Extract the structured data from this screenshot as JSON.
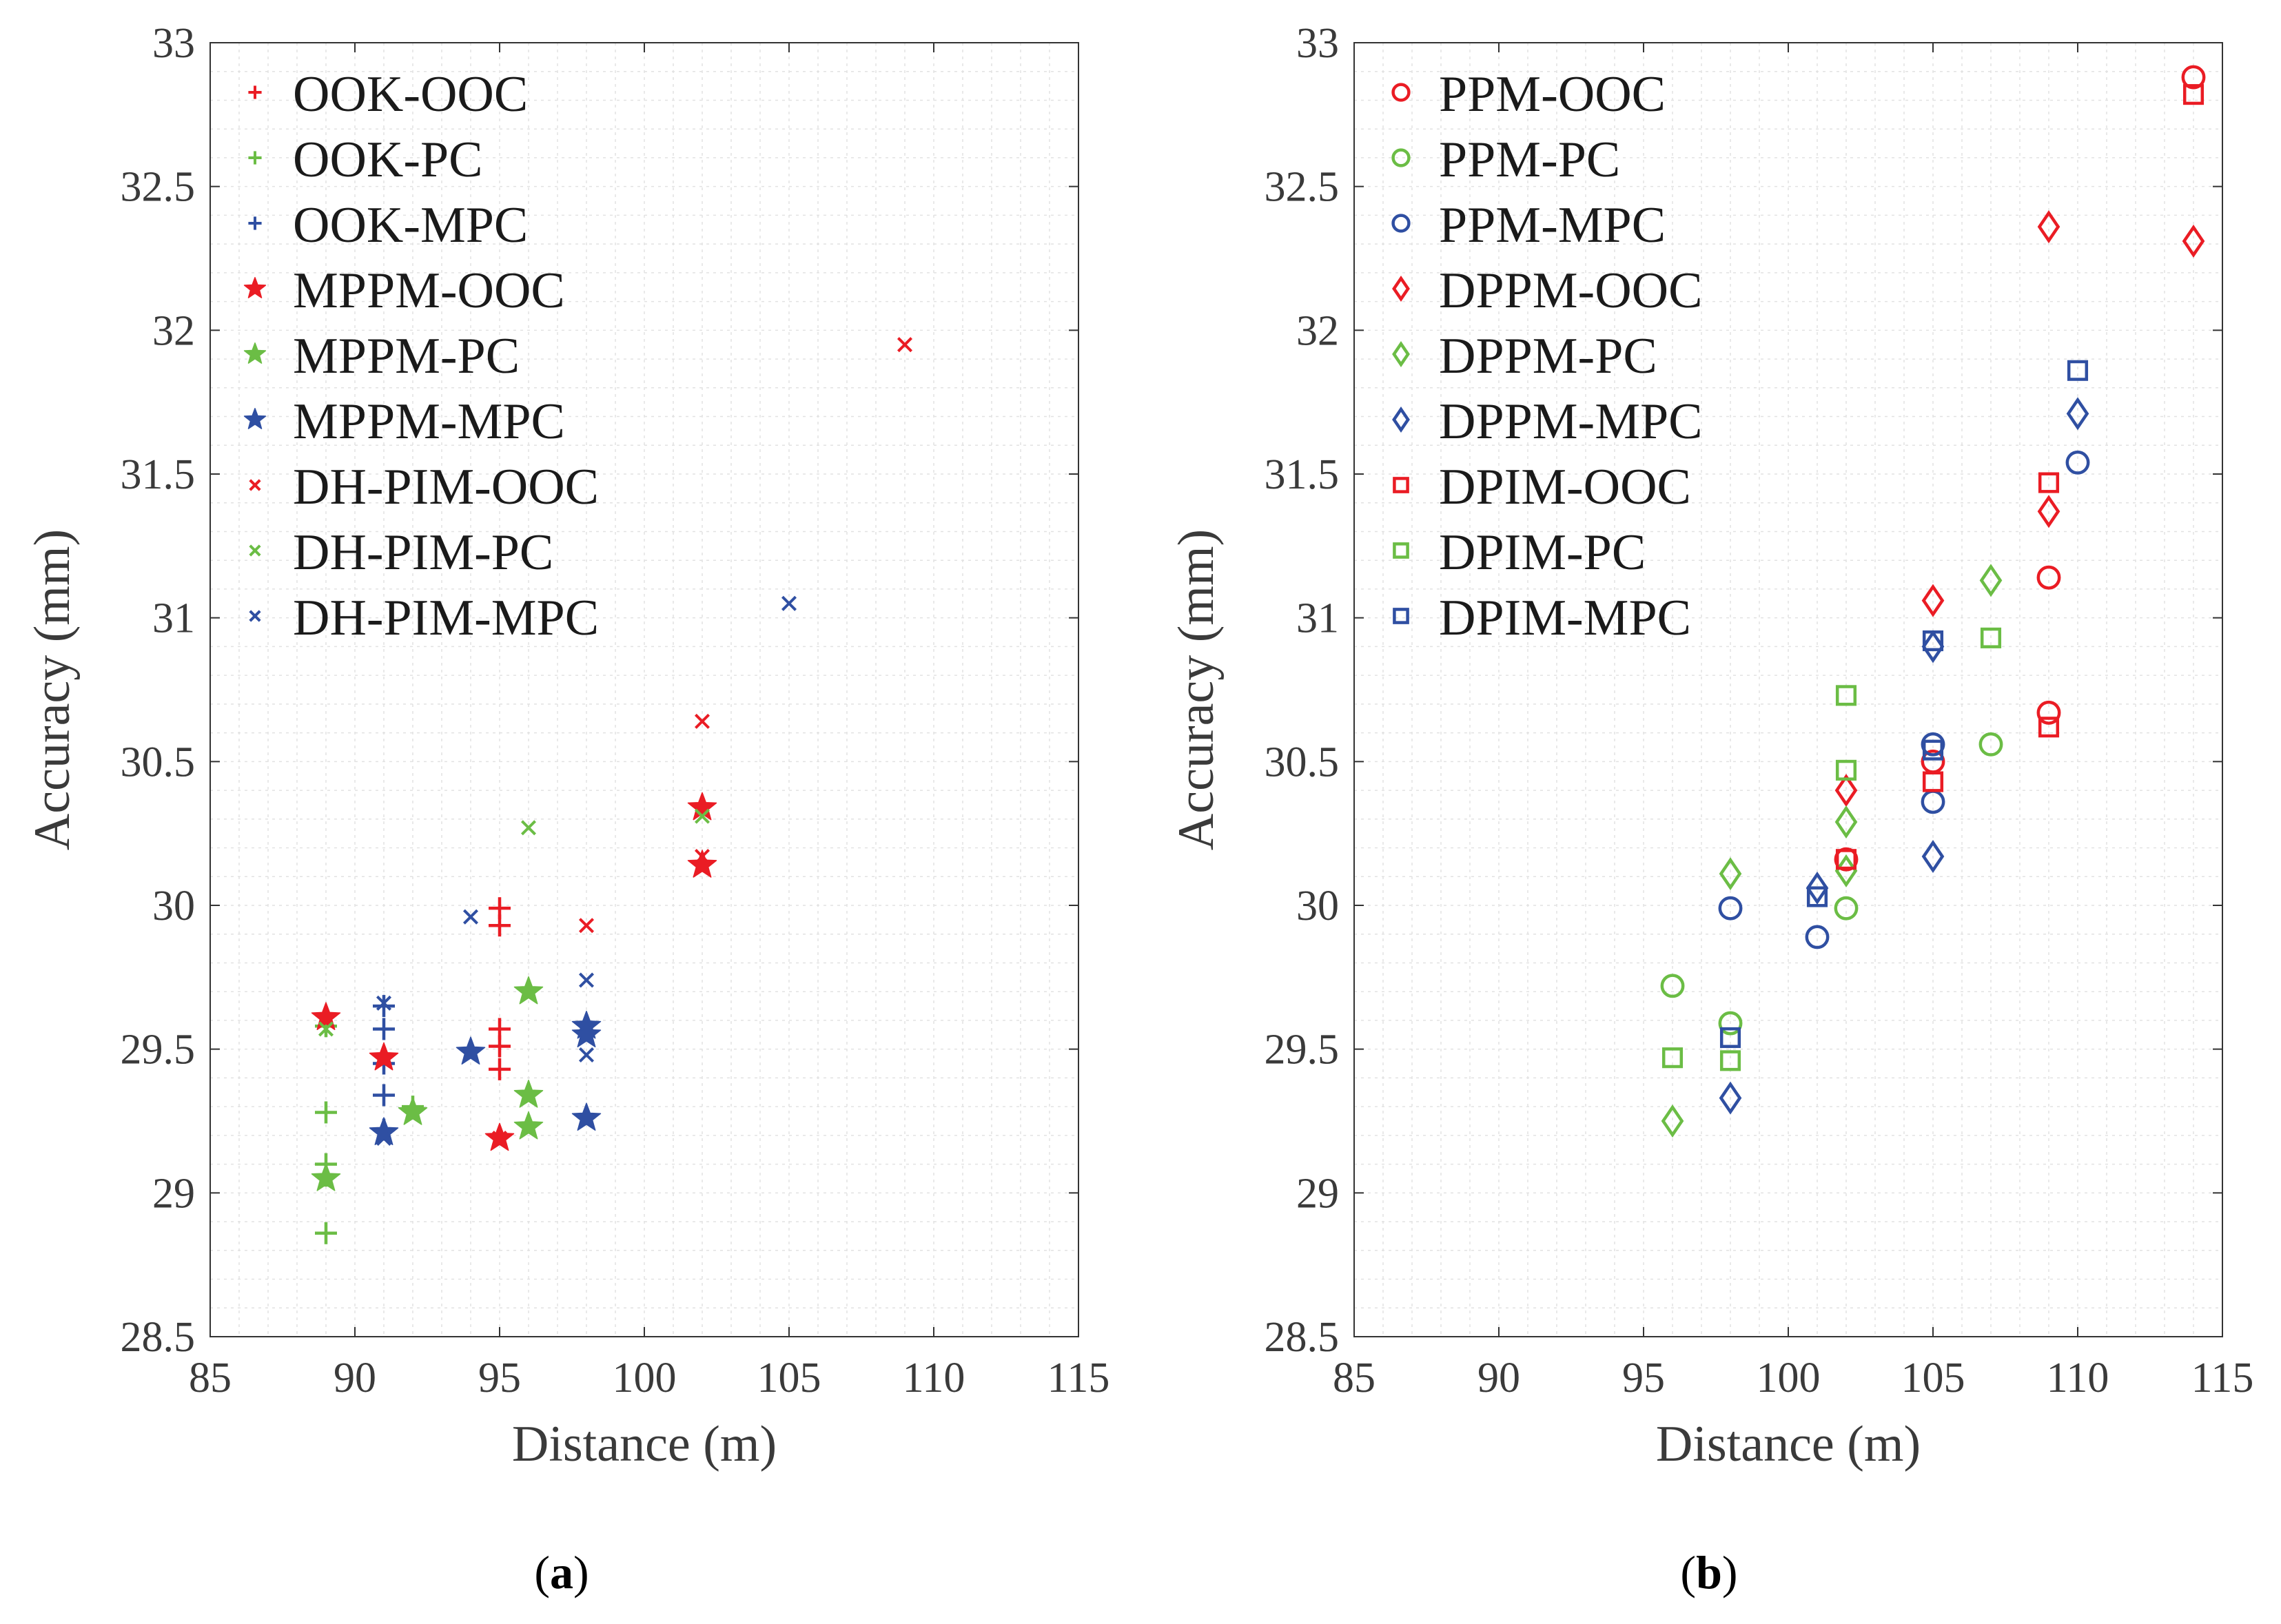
{
  "colors": {
    "red": "#ea1c24",
    "green": "#6bbd45",
    "blue": "#2f4fa2"
  },
  "chart_data": [
    {
      "type": "scatter",
      "caption": "a",
      "title": "",
      "xlabel": "Distance (m)",
      "ylabel": "Accuracy (mm)",
      "xlim": [
        85,
        115
      ],
      "ylim": [
        28.5,
        33
      ],
      "xticks": [
        "85",
        "90",
        "95",
        "100",
        "105",
        "110",
        "115"
      ],
      "yticks": [
        "28.5",
        "29",
        "29.5",
        "30",
        "30.5",
        "31",
        "31.5",
        "32",
        "32.5",
        "33"
      ],
      "legend": "top-left",
      "series": [
        {
          "name": "OOK-OOC",
          "marker": "plus-small",
          "color": "red",
          "points": [
            [
              95,
              29.99
            ],
            [
              95,
              29.93
            ],
            [
              95,
              29.57
            ],
            [
              95,
              29.51
            ],
            [
              95,
              29.43
            ]
          ]
        },
        {
          "name": "OOK-PC",
          "marker": "plus-small",
          "color": "green",
          "points": [
            [
              89,
              29.58
            ],
            [
              89,
              29.28
            ],
            [
              89,
              29.1
            ],
            [
              89,
              29.06
            ],
            [
              89,
              28.86
            ],
            [
              92,
              29.3
            ]
          ]
        },
        {
          "name": "OOK-MPC",
          "marker": "plus-small",
          "color": "blue",
          "points": [
            [
              91,
              29.65
            ],
            [
              91,
              29.57
            ],
            [
              91,
              29.45
            ],
            [
              91,
              29.34
            ],
            [
              91,
              29.22
            ]
          ]
        },
        {
          "name": "MPPM-OOC",
          "marker": "star",
          "color": "red",
          "points": [
            [
              89,
              29.61
            ],
            [
              91,
              29.47
            ],
            [
              95,
              29.19
            ],
            [
              102,
              30.34
            ],
            [
              102,
              30.14
            ]
          ]
        },
        {
          "name": "MPPM-PC",
          "marker": "star",
          "color": "green",
          "points": [
            [
              89,
              29.05
            ],
            [
              92,
              29.28
            ],
            [
              96,
              29.7
            ],
            [
              96,
              29.34
            ],
            [
              96,
              29.23
            ]
          ]
        },
        {
          "name": "MPPM-MPC",
          "marker": "star",
          "color": "blue",
          "points": [
            [
              91,
              29.21
            ],
            [
              94,
              29.49
            ],
            [
              98,
              29.58
            ],
            [
              98,
              29.55
            ],
            [
              98,
              29.26
            ]
          ]
        },
        {
          "name": "DH-PIM-OOC",
          "marker": "x-small",
          "color": "red",
          "points": [
            [
              109,
              31.95
            ],
            [
              102,
              30.64
            ],
            [
              102,
              30.17
            ],
            [
              98,
              29.93
            ],
            [
              95,
              29.19
            ]
          ]
        },
        {
          "name": "DH-PIM-PC",
          "marker": "x-small",
          "color": "green",
          "points": [
            [
              96,
              30.27
            ],
            [
              102,
              30.31
            ],
            [
              89,
              29.57
            ],
            [
              92,
              29.27
            ]
          ]
        },
        {
          "name": "DH-PIM-MPC",
          "marker": "x-small",
          "color": "blue",
          "points": [
            [
              105,
              31.05
            ],
            [
              94,
              29.96
            ],
            [
              98,
              29.74
            ],
            [
              98,
              29.48
            ],
            [
              91,
              29.66
            ],
            [
              91,
              29.19
            ]
          ]
        }
      ]
    },
    {
      "type": "scatter",
      "caption": "b",
      "title": "",
      "xlabel": "Distance (m)",
      "ylabel": "Accuracy (mm)",
      "xlim": [
        85,
        115
      ],
      "ylim": [
        28.5,
        33
      ],
      "xticks": [
        "85",
        "90",
        "95",
        "100",
        "105",
        "110",
        "115"
      ],
      "yticks": [
        "28.5",
        "29",
        "29.5",
        "30",
        "30.5",
        "31",
        "31.5",
        "32",
        "32.5",
        "33"
      ],
      "legend": "top-left",
      "series": [
        {
          "name": "PPM-OOC",
          "marker": "circle",
          "color": "red",
          "points": [
            [
              114,
              32.88
            ],
            [
              109,
              31.14
            ],
            [
              109,
              30.67
            ],
            [
              105,
              30.5
            ],
            [
              102,
              30.16
            ]
          ]
        },
        {
          "name": "PPM-PC",
          "marker": "circle",
          "color": "green",
          "points": [
            [
              96,
              29.72
            ],
            [
              98,
              29.59
            ],
            [
              102,
              29.99
            ],
            [
              107,
              30.56
            ]
          ]
        },
        {
          "name": "PPM-MPC",
          "marker": "circle",
          "color": "blue",
          "points": [
            [
              98,
              29.99
            ],
            [
              101,
              29.89
            ],
            [
              105,
              30.56
            ],
            [
              105,
              30.36
            ],
            [
              110,
              31.54
            ]
          ]
        },
        {
          "name": "DPPM-OOC",
          "marker": "diamond",
          "color": "red",
          "points": [
            [
              109,
              32.36
            ],
            [
              114,
              32.31
            ],
            [
              109,
              31.37
            ],
            [
              105,
              31.06
            ],
            [
              102,
              30.4
            ]
          ]
        },
        {
          "name": "DPPM-PC",
          "marker": "diamond",
          "color": "green",
          "points": [
            [
              96,
              29.25
            ],
            [
              98,
              30.11
            ],
            [
              102,
              30.29
            ],
            [
              102,
              30.12
            ],
            [
              107,
              31.13
            ]
          ]
        },
        {
          "name": "DPPM-MPC",
          "marker": "diamond",
          "color": "blue",
          "points": [
            [
              98,
              29.33
            ],
            [
              101,
              30.06
            ],
            [
              105,
              30.9
            ],
            [
              105,
              30.17
            ],
            [
              110,
              31.71
            ]
          ]
        },
        {
          "name": "DPIM-OOC",
          "marker": "square",
          "color": "red",
          "points": [
            [
              114,
              32.82
            ],
            [
              109,
              31.47
            ],
            [
              109,
              30.62
            ],
            [
              105,
              30.43
            ],
            [
              102,
              30.16
            ]
          ]
        },
        {
          "name": "DPIM-PC",
          "marker": "square",
          "color": "green",
          "points": [
            [
              96,
              29.47
            ],
            [
              98,
              29.46
            ],
            [
              102,
              30.73
            ],
            [
              102,
              30.47
            ],
            [
              107,
              30.93
            ]
          ]
        },
        {
          "name": "DPIM-MPC",
          "marker": "square",
          "color": "blue",
          "points": [
            [
              98,
              29.54
            ],
            [
              101,
              30.03
            ],
            [
              105,
              30.92
            ],
            [
              105,
              30.54
            ],
            [
              110,
              31.86
            ]
          ]
        }
      ]
    }
  ]
}
